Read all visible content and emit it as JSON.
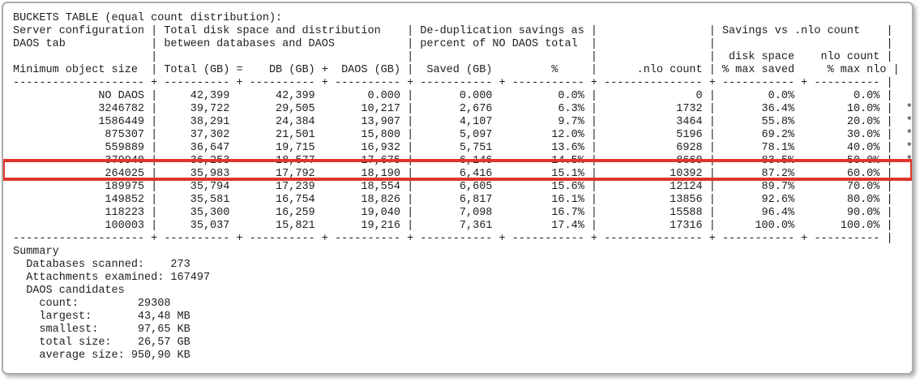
{
  "report": {
    "title": "BUCKETS TABLE (equal count distribution):",
    "table": {
      "header_lines": [
        "Server configuration | Total disk space and distribution    | De-duplication savings as |                 | Savings vs .nlo count    |",
        "DAOS tab             | between databases and DAOS           | percent of NO DAOS total  |                 |                          |",
        "                     |                                      |                           |                 |  disk space    nlo count |",
        "Minimum object size  | Total (GB) =    DB (GB) +  DAOS (GB) |  Saved (GB)         %     |      .nlo count | % max saved     % max nlo |"
      ],
      "separator": "-------------------- + ---------- + ---------- + ---------- + ----------- + ----------- + --------------- + ----------- + ---------- |",
      "columns": [
        "Minimum object size",
        "Total (GB)",
        "DB (GB)",
        "DAOS (GB)",
        "Saved (GB)",
        "%",
        ".nlo count",
        "% max saved",
        "% max nlo"
      ],
      "rows": [
        {
          "min_object_size": "NO DAOS",
          "total_gb": "42,399",
          "db_gb": "42,399",
          "daos_gb": "0.000",
          "saved_gb": "0.000",
          "saved_pct": "0.0%",
          "nlo_count": "0",
          "pct_max_saved": "0.0%",
          "pct_max_nlo": "0.0%",
          "star": false
        },
        {
          "min_object_size": "3246782",
          "total_gb": "39,722",
          "db_gb": "29,505",
          "daos_gb": "10,217",
          "saved_gb": "2,676",
          "saved_pct": "6.3%",
          "nlo_count": "1732",
          "pct_max_saved": "36.4%",
          "pct_max_nlo": "10.0%",
          "star": true
        },
        {
          "min_object_size": "1586449",
          "total_gb": "38,291",
          "db_gb": "24,384",
          "daos_gb": "13,907",
          "saved_gb": "4,107",
          "saved_pct": "9.7%",
          "nlo_count": "3464",
          "pct_max_saved": "55.8%",
          "pct_max_nlo": "20.0%",
          "star": true
        },
        {
          "min_object_size": "875307",
          "total_gb": "37,302",
          "db_gb": "21,501",
          "daos_gb": "15,800",
          "saved_gb": "5,097",
          "saved_pct": "12.0%",
          "nlo_count": "5196",
          "pct_max_saved": "69.2%",
          "pct_max_nlo": "30.0%",
          "star": true
        },
        {
          "min_object_size": "559889",
          "total_gb": "36,647",
          "db_gb": "19,715",
          "daos_gb": "16,932",
          "saved_gb": "5,751",
          "saved_pct": "13.6%",
          "nlo_count": "6928",
          "pct_max_saved": "78.1%",
          "pct_max_nlo": "40.0%",
          "star": true
        },
        {
          "min_object_size": "379940",
          "total_gb": "36,253",
          "db_gb": "18,577",
          "daos_gb": "17,675",
          "saved_gb": "6,146",
          "saved_pct": "14.5%",
          "nlo_count": "8660",
          "pct_max_saved": "83.5%",
          "pct_max_nlo": "50.0%",
          "star": true
        },
        {
          "min_object_size": "264025",
          "total_gb": "35,983",
          "db_gb": "17,792",
          "daos_gb": "18,190",
          "saved_gb": "6,416",
          "saved_pct": "15.1%",
          "nlo_count": "10392",
          "pct_max_saved": "87.2%",
          "pct_max_nlo": "60.0%",
          "star": false
        },
        {
          "min_object_size": "189975",
          "total_gb": "35,794",
          "db_gb": "17,239",
          "daos_gb": "18,554",
          "saved_gb": "6,605",
          "saved_pct": "15.6%",
          "nlo_count": "12124",
          "pct_max_saved": "89.7%",
          "pct_max_nlo": "70.0%",
          "star": false
        },
        {
          "min_object_size": "149852",
          "total_gb": "35,581",
          "db_gb": "16,754",
          "daos_gb": "18,826",
          "saved_gb": "6,817",
          "saved_pct": "16.1%",
          "nlo_count": "13856",
          "pct_max_saved": "92.6%",
          "pct_max_nlo": "80.0%",
          "star": false
        },
        {
          "min_object_size": "118223",
          "total_gb": "35,300",
          "db_gb": "16,259",
          "daos_gb": "19,040",
          "saved_gb": "7,098",
          "saved_pct": "16.7%",
          "nlo_count": "15588",
          "pct_max_saved": "96.4%",
          "pct_max_nlo": "90.0%",
          "star": false
        },
        {
          "min_object_size": "100003",
          "total_gb": "35,037",
          "db_gb": "15,821",
          "daos_gb": "19,216",
          "saved_gb": "7,361",
          "saved_pct": "17.4%",
          "nlo_count": "17316",
          "pct_max_saved": "100.0%",
          "pct_max_nlo": "100.0%",
          "star": false
        }
      ]
    },
    "highlight": {
      "row_min_object_size": "264025",
      "color": "#e0352b"
    },
    "summary_lines": [
      "Summary",
      "  Databases scanned:    273",
      "  Attachments examined: 167497",
      "  DAOS candidates",
      "    count:         29308",
      "    largest:       43,48 MB",
      "    smallest:      97,65 KB",
      "    total size:    26,57 GB",
      "    average size: 950,90 KB"
    ],
    "colors": {
      "text": "#1e1e1e",
      "frame_border": "#acacac",
      "background": "#ffffff",
      "highlight": "#e0352b"
    }
  }
}
